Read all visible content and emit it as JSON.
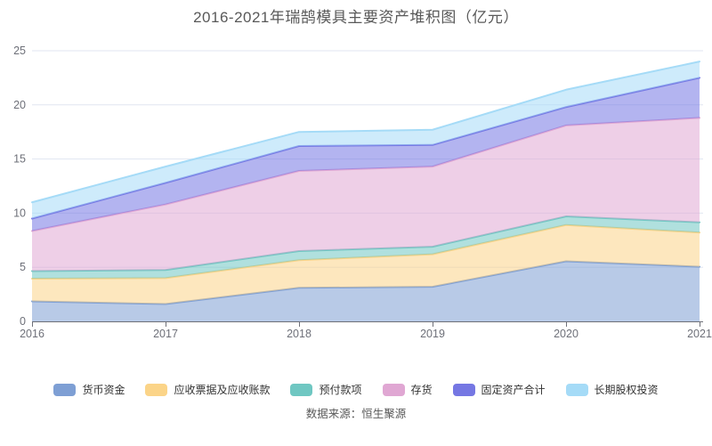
{
  "title": "2016-2021年瑞鹄模具主要资产堆积图（亿元）",
  "source": "数据来源：恒生聚源",
  "colors": {
    "title_text": "#595959",
    "axis_line": "#6E7079",
    "axis_label": "#6E7079",
    "gridline": "#E0E6F1",
    "legend_text": "#333333",
    "source_text": "#595959",
    "background": "#FFFFFF"
  },
  "chart_data": {
    "type": "area",
    "stacked": true,
    "title": "2016-2021年瑞鹄模具主要资产堆积图（亿元）",
    "xlabel": "",
    "ylabel": "",
    "x": [
      2016,
      2017,
      2018,
      2019,
      2020,
      2021
    ],
    "xtick_labels": [
      "2016",
      "2017",
      "2018",
      "2019",
      "2020",
      "2021"
    ],
    "ylim": [
      0,
      25
    ],
    "yticks": [
      0,
      5,
      10,
      15,
      20,
      25
    ],
    "grid": true,
    "legend_position": "bottom",
    "area_opacity": 0.55,
    "series": [
      {
        "name": "货币资金",
        "color": "#7E9FD4",
        "values": [
          1.85,
          1.6,
          3.1,
          3.2,
          5.55,
          5.05
        ]
      },
      {
        "name": "应收票据及应收账款",
        "color": "#FBD488",
        "values": [
          2.1,
          2.4,
          2.55,
          3.0,
          3.35,
          3.15
        ]
      },
      {
        "name": "预付款项",
        "color": "#6FC7C2",
        "values": [
          0.7,
          0.75,
          0.85,
          0.7,
          0.8,
          0.95
        ]
      },
      {
        "name": "存货",
        "color": "#E0A7D3",
        "values": [
          3.7,
          6.05,
          7.4,
          7.4,
          8.4,
          9.65
        ]
      },
      {
        "name": "固定资产合计",
        "color": "#7577E3",
        "values": [
          1.15,
          2.0,
          2.3,
          2.0,
          1.7,
          3.7
        ]
      },
      {
        "name": "长期股权投资",
        "color": "#A5DBF7",
        "values": [
          1.5,
          1.5,
          1.3,
          1.4,
          1.6,
          1.5
        ]
      }
    ],
    "cumulative_totals": [
      11.0,
      14.3,
      17.5,
      17.7,
      21.4,
      24.0
    ]
  }
}
